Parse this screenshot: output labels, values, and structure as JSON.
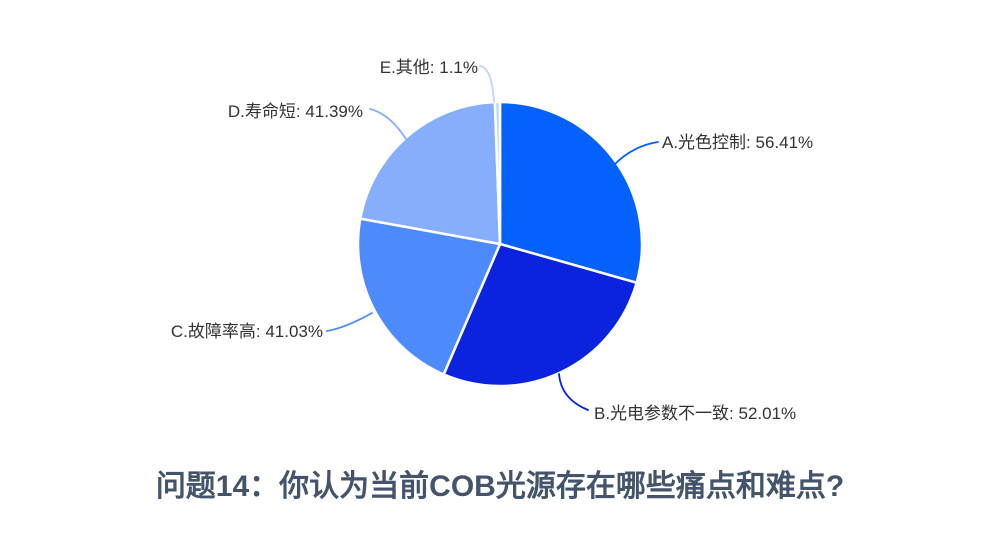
{
  "chart_data": {
    "type": "pie",
    "title": "问题14：你认为当前COB光源存在哪些痛点和难点?",
    "unit": "%",
    "legend_position": "none",
    "label_style": "outside-with-leader-lines",
    "slices": [
      {
        "id": "A",
        "label": "A.光色控制",
        "value": 56.41,
        "color": "#0561fc"
      },
      {
        "id": "B",
        "label": "B.光电参数不一致",
        "value": 52.01,
        "color": "#0b22de"
      },
      {
        "id": "C",
        "label": "C.故障率高",
        "value": 41.03,
        "color": "#4d8bfc"
      },
      {
        "id": "D",
        "label": "D.寿命短",
        "value": 41.39,
        "color": "#86aefc"
      },
      {
        "id": "E",
        "label": "E.其他",
        "value": 1.1,
        "color": "#c0d4fb"
      }
    ],
    "colors": {
      "title_text": "#44546a",
      "label_text": "#333333",
      "slice_border": "#ffffff",
      "background": "#ffffff"
    }
  }
}
